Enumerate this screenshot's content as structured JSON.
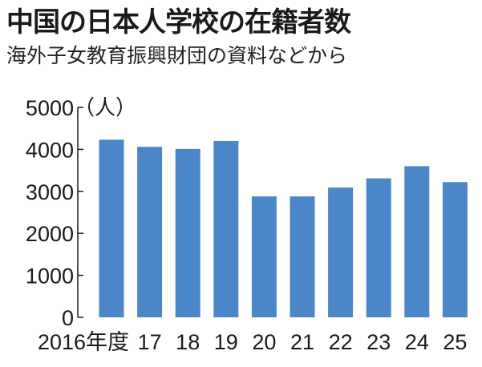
{
  "chart_data": {
    "type": "bar",
    "title": "中国の日本人学校の在籍者数",
    "subtitle": "海外子女教育振興財団の資料などから",
    "unit": "（人）",
    "categories": [
      "2016年度",
      "17",
      "18",
      "19",
      "20",
      "21",
      "22",
      "23",
      "24",
      "25"
    ],
    "values": [
      4230,
      4060,
      4010,
      4200,
      2880,
      2880,
      3090,
      3310,
      3600,
      3220
    ],
    "yticks": [
      0,
      1000,
      2000,
      3000,
      4000,
      5000
    ],
    "ylim": [
      0,
      5000
    ],
    "bar_color": "#4a86c8",
    "grid": false
  }
}
